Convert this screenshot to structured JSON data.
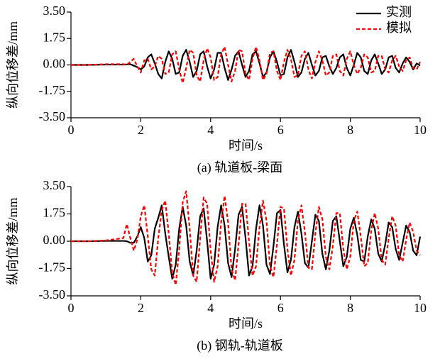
{
  "chart_data": [
    {
      "type": "line",
      "caption": "(a) 轨道板-梁面",
      "xlabel": "时间/s",
      "ylabel": "纵向位移差/mm",
      "legend": "upper right",
      "xlim": [
        0,
        10
      ],
      "xticks": [
        0,
        2,
        4,
        6,
        8,
        10
      ],
      "ylim": [
        -3.5,
        3.5
      ],
      "yticks": [
        {
          "value": 3.5,
          "label": "3.50"
        },
        {
          "value": 1.75,
          "label": "1.75"
        },
        {
          "value": 0,
          "label": "0.00"
        },
        {
          "value": -1.75,
          "label": "-1.75"
        },
        {
          "value": -3.5,
          "label": "-3.50"
        }
      ],
      "x": [
        0,
        0.5,
        1,
        1.5,
        1.6,
        1.7,
        1.8,
        1.9,
        2,
        2.1,
        2.2,
        2.3,
        2.4,
        2.5,
        2.6,
        2.7,
        2.8,
        2.9,
        3,
        3.1,
        3.2,
        3.3,
        3.4,
        3.5,
        3.6,
        3.7,
        3.8,
        3.9,
        4,
        4.1,
        4.2,
        4.3,
        4.4,
        4.5,
        4.6,
        4.7,
        4.8,
        4.9,
        5,
        5.1,
        5.2,
        5.3,
        5.4,
        5.5,
        5.6,
        5.7,
        5.8,
        5.9,
        6,
        6.1,
        6.2,
        6.3,
        6.4,
        6.5,
        6.6,
        6.7,
        6.8,
        6.9,
        7,
        7.1,
        7.2,
        7.3,
        7.4,
        7.5,
        7.6,
        7.7,
        7.8,
        7.9,
        8,
        8.1,
        8.2,
        8.3,
        8.4,
        8.5,
        8.6,
        8.7,
        8.8,
        8.9,
        9,
        9.1,
        9.2,
        9.3,
        9.4,
        9.5,
        9.6,
        9.7,
        9.8,
        9.9,
        10
      ],
      "series": [
        {
          "name": "实测",
          "color": "#000000",
          "dash": false,
          "values": [
            0,
            0,
            0.02,
            0.02,
            0.03,
            0.05,
            -0.05,
            -0.15,
            -0.3,
            -0.1,
            0.5,
            0.7,
            0.1,
            -0.6,
            -0.9,
            0.2,
            0.9,
            0.4,
            -0.6,
            -0.5,
            0.6,
            1.0,
            0.2,
            -0.8,
            -0.4,
            0.7,
            0.9,
            -0.1,
            -0.9,
            -0.3,
            0.8,
            0.8,
            -0.2,
            -1.0,
            -0.3,
            0.6,
            0.9,
            0.0,
            -0.8,
            -0.4,
            0.7,
            0.9,
            0.1,
            -0.8,
            -0.5,
            0.5,
            0.9,
            0.2,
            -0.7,
            -0.6,
            0.5,
            1.0,
            0.2,
            -0.8,
            -0.5,
            0.4,
            0.8,
            0.0,
            -0.7,
            -0.4,
            0.5,
            0.6,
            -0.1,
            -0.6,
            -0.2,
            0.5,
            0.7,
            -0.2,
            -0.7,
            0.0,
            0.8,
            0.5,
            -0.4,
            -0.6,
            0.3,
            0.7,
            0.1,
            -0.6,
            -0.3,
            0.5,
            0.6,
            -0.2,
            -0.5,
            0.1,
            0.5,
            0.2,
            -0.3,
            0.1,
            -0.05
          ]
        },
        {
          "name": "模拟",
          "color": "#ff0000",
          "dash": true,
          "values": [
            0,
            0,
            0.05,
            0.05,
            0.0,
            0.2,
            0.4,
            -0.1,
            -0.5,
            0.3,
            0.4,
            -0.3,
            -0.1,
            0.6,
            0.4,
            -0.6,
            -0.5,
            0.7,
            0.9,
            -0.3,
            -1.2,
            -0.2,
            1.0,
            0.8,
            -0.7,
            -1.1,
            0.3,
            1.1,
            0.5,
            -1.0,
            -0.8,
            0.7,
            1.2,
            0.0,
            -1.1,
            -0.4,
            1.0,
            0.9,
            -0.6,
            -1.0,
            0.4,
            1.2,
            0.3,
            -1.0,
            -0.6,
            0.8,
            0.9,
            -0.4,
            -1.0,
            0.2,
            1.0,
            0.4,
            -0.8,
            -0.7,
            0.6,
            0.9,
            -0.3,
            -0.9,
            0.2,
            0.9,
            0.3,
            -0.7,
            -0.5,
            0.6,
            0.7,
            -0.4,
            -0.7,
            0.4,
            0.9,
            0.0,
            -0.6,
            -0.2,
            0.7,
            0.5,
            -0.5,
            -0.4,
            0.6,
            0.6,
            -0.3,
            -0.5,
            0.3,
            0.6,
            -0.1,
            -0.4,
            0.3,
            0.5,
            -0.2,
            -0.3,
            0.2
          ]
        }
      ]
    },
    {
      "type": "line",
      "caption": "(b) 钢轨-轨道板",
      "xlabel": "时间/s",
      "ylabel": "纵向位移差/mm",
      "xlim": [
        0,
        10
      ],
      "xticks": [
        0,
        2,
        4,
        6,
        8,
        10
      ],
      "ylim": [
        -3.5,
        3.5
      ],
      "yticks": [
        {
          "value": 3.5,
          "label": "3.50"
        },
        {
          "value": 1.75,
          "label": "1.75"
        },
        {
          "value": 0,
          "label": "0.00"
        },
        {
          "value": -1.75,
          "label": "-1.75"
        },
        {
          "value": -3.5,
          "label": "-3.50"
        }
      ],
      "x": [
        0,
        0.5,
        1,
        1.5,
        1.6,
        1.7,
        1.8,
        1.9,
        2,
        2.1,
        2.2,
        2.3,
        2.4,
        2.5,
        2.6,
        2.7,
        2.8,
        2.9,
        3,
        3.1,
        3.2,
        3.3,
        3.4,
        3.5,
        3.6,
        3.7,
        3.8,
        3.9,
        4,
        4.1,
        4.2,
        4.3,
        4.4,
        4.5,
        4.6,
        4.7,
        4.8,
        4.9,
        5,
        5.1,
        5.2,
        5.3,
        5.4,
        5.5,
        5.6,
        5.7,
        5.8,
        5.9,
        6,
        6.1,
        6.2,
        6.3,
        6.4,
        6.5,
        6.6,
        6.7,
        6.8,
        6.9,
        7,
        7.1,
        7.2,
        7.3,
        7.4,
        7.5,
        7.6,
        7.7,
        7.8,
        7.9,
        8,
        8.1,
        8.2,
        8.3,
        8.4,
        8.5,
        8.6,
        8.7,
        8.8,
        8.9,
        9,
        9.1,
        9.2,
        9.3,
        9.4,
        9.5,
        9.6,
        9.7,
        9.8,
        9.9,
        10
      ],
      "series": [
        {
          "color": "#000000",
          "dash": false,
          "values": [
            0,
            0,
            0.02,
            0.02,
            0.0,
            -0.1,
            -0.1,
            0.3,
            0.9,
            0.2,
            -1.3,
            -0.9,
            0.8,
            1.5,
            2.3,
            0.5,
            -1.0,
            -2.4,
            -1.5,
            0.8,
            2.2,
            1.0,
            -1.3,
            -2.2,
            -0.6,
            1.6,
            2.1,
            0.0,
            -2.4,
            -1.5,
            0.9,
            2.3,
            1.0,
            -1.4,
            -2.3,
            -0.5,
            1.7,
            2.2,
            0.2,
            -2.2,
            -1.6,
            0.8,
            2.3,
            1.0,
            -1.5,
            -2.1,
            -0.3,
            1.8,
            2.0,
            -0.2,
            -2.0,
            -1.2,
            0.9,
            1.9,
            0.5,
            -1.4,
            -1.7,
            0.0,
            1.7,
            1.3,
            -0.8,
            -1.8,
            -0.6,
            1.3,
            1.6,
            0.0,
            -1.6,
            -1.0,
            0.8,
            1.5,
            0.4,
            -1.2,
            -1.3,
            0.3,
            1.4,
            0.8,
            -0.8,
            -1.3,
            -0.2,
            1.2,
            0.9,
            -0.5,
            -1.2,
            -0.1,
            1.0,
            0.6,
            -0.6,
            -0.9,
            0.3
          ]
        },
        {
          "color": "#ff0000",
          "dash": true,
          "values": [
            0,
            0,
            0.05,
            0.2,
            1.1,
            0.2,
            -0.6,
            0.1,
            1.6,
            2.3,
            0.3,
            -1.8,
            -2.2,
            0.2,
            2.0,
            2.6,
            0.5,
            -2.0,
            -2.8,
            -0.5,
            2.5,
            3.2,
            0.8,
            -2.2,
            -2.6,
            0.2,
            2.8,
            2.4,
            -0.6,
            -2.6,
            -1.6,
            1.2,
            2.9,
            1.2,
            -1.8,
            -2.5,
            -0.2,
            2.4,
            2.4,
            0.0,
            -2.2,
            -1.6,
            0.9,
            2.6,
            1.3,
            -1.6,
            -2.3,
            -0.2,
            2.2,
            2.1,
            -0.5,
            -2.2,
            -1.2,
            1.3,
            2.3,
            0.6,
            -1.7,
            -1.8,
            0.5,
            2.2,
            1.4,
            -1.0,
            -1.8,
            -0.3,
            1.8,
            1.8,
            -0.5,
            -1.8,
            -1.0,
            1.3,
            1.9,
            0.3,
            -1.6,
            -1.4,
            0.7,
            1.8,
            0.8,
            -1.2,
            -1.5,
            0.2,
            1.6,
            1.0,
            -0.9,
            -1.3,
            0.1,
            1.2,
            0.6,
            -0.6,
            -0.9
          ]
        }
      ]
    }
  ]
}
